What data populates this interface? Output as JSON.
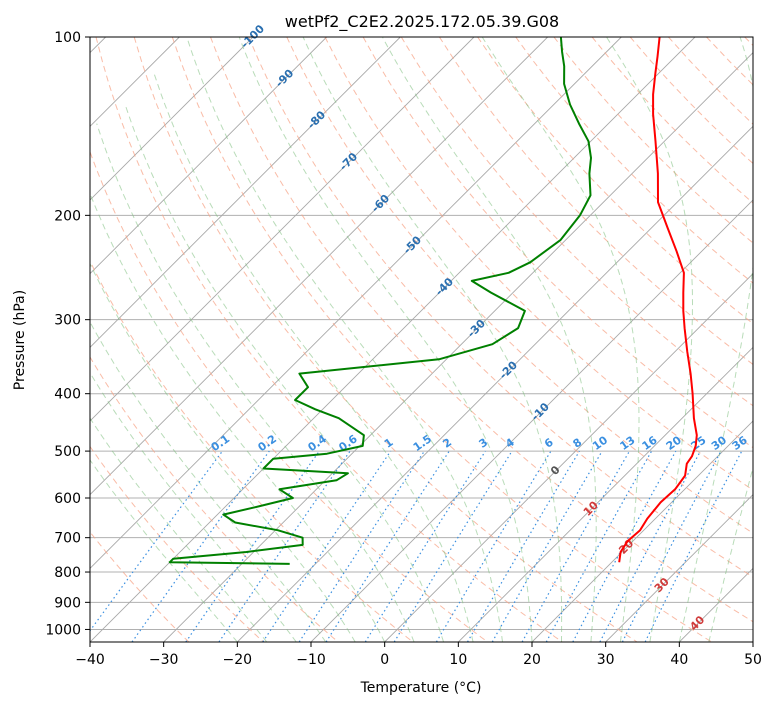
{
  "chart_data": {
    "type": "skewt",
    "title": "wetPf2_C2E2.2025.172.05.39.G08",
    "xlabel": "Temperature (°C)",
    "ylabel": "Pressure (hPa)",
    "xlim": [
      -40,
      50
    ],
    "ylim": [
      1050,
      100
    ],
    "x_ticks": [
      -40,
      -30,
      -20,
      -10,
      0,
      10,
      20,
      30,
      40,
      50
    ],
    "p_ticks": [
      100,
      200,
      300,
      400,
      500,
      600,
      700,
      800,
      900,
      1000
    ],
    "grid": true,
    "isotherm_labels": [
      -100,
      -90,
      -80,
      -70,
      -60,
      -50,
      -40,
      -30,
      -20,
      -10,
      0,
      10,
      20,
      30,
      40
    ],
    "mixing_ratio_labels": [
      "0.1",
      "0.2",
      "0.4",
      "0.6",
      "1",
      "1.5",
      "2",
      "3",
      "4",
      "6",
      "8",
      "10",
      "13",
      "16",
      "20",
      "25",
      "30",
      "36"
    ],
    "mixing_ratio_values": [
      0.1,
      0.2,
      0.4,
      0.6,
      1,
      1.5,
      2,
      3,
      4,
      6,
      8,
      10,
      13,
      16,
      20,
      25,
      30,
      36
    ],
    "series": [
      {
        "variable": "temperature",
        "color": "#ff0000",
        "points": [
          {
            "p": 770,
            "t": 21.0
          },
          {
            "p": 740,
            "t": 19.8
          },
          {
            "p": 710,
            "t": 19.3
          },
          {
            "p": 680,
            "t": 19.5
          },
          {
            "p": 650,
            "t": 18.9
          },
          {
            "p": 610,
            "t": 18.5
          },
          {
            "p": 580,
            "t": 18.7
          },
          {
            "p": 550,
            "t": 18.2
          },
          {
            "p": 525,
            "t": 16.8
          },
          {
            "p": 510,
            "t": 16.5
          },
          {
            "p": 490,
            "t": 15.6
          },
          {
            "p": 470,
            "t": 14.3
          },
          {
            "p": 440,
            "t": 11.6
          },
          {
            "p": 400,
            "t": 8.1
          },
          {
            "p": 370,
            "t": 5.1
          },
          {
            "p": 340,
            "t": 1.7
          },
          {
            "p": 310,
            "t": -1.9
          },
          {
            "p": 290,
            "t": -4.4
          },
          {
            "p": 270,
            "t": -6.9
          },
          {
            "p": 250,
            "t": -9.5
          },
          {
            "p": 230,
            "t": -13.4
          },
          {
            "p": 210,
            "t": -17.8
          },
          {
            "p": 190,
            "t": -22.6
          },
          {
            "p": 170,
            "t": -26.5
          },
          {
            "p": 150,
            "t": -31.2
          },
          {
            "p": 135,
            "t": -35.2
          },
          {
            "p": 125,
            "t": -37.9
          },
          {
            "p": 115,
            "t": -40.5
          },
          {
            "p": 108,
            "t": -42.4
          },
          {
            "p": 100,
            "t": -44.8
          }
        ]
      },
      {
        "variable": "dewpoint",
        "color": "#008000",
        "points": [
          {
            "p": 775,
            "t": -23.5
          },
          {
            "p": 770,
            "t": -40.0
          },
          {
            "p": 760,
            "t": -40.0
          },
          {
            "p": 740,
            "t": -31.0
          },
          {
            "p": 720,
            "t": -24.3
          },
          {
            "p": 700,
            "t": -25.3
          },
          {
            "p": 680,
            "t": -29.7
          },
          {
            "p": 660,
            "t": -36.5
          },
          {
            "p": 640,
            "t": -39.2
          },
          {
            "p": 620,
            "t": -35.5
          },
          {
            "p": 600,
            "t": -32.0
          },
          {
            "p": 580,
            "t": -35.0
          },
          {
            "p": 560,
            "t": -28.5
          },
          {
            "p": 545,
            "t": -27.9
          },
          {
            "p": 535,
            "t": -40.0
          },
          {
            "p": 515,
            "t": -40.0
          },
          {
            "p": 505,
            "t": -33.4
          },
          {
            "p": 490,
            "t": -29.6
          },
          {
            "p": 470,
            "t": -30.9
          },
          {
            "p": 440,
            "t": -36.6
          },
          {
            "p": 425,
            "t": -41.0
          },
          {
            "p": 410,
            "t": -45.0
          },
          {
            "p": 390,
            "t": -45.0
          },
          {
            "p": 370,
            "t": -48.0
          },
          {
            "p": 350,
            "t": -31.0
          },
          {
            "p": 330,
            "t": -25.8
          },
          {
            "p": 310,
            "t": -24.5
          },
          {
            "p": 290,
            "t": -25.9
          },
          {
            "p": 270,
            "t": -33.0
          },
          {
            "p": 258,
            "t": -37.2
          },
          {
            "p": 250,
            "t": -33.3
          },
          {
            "p": 240,
            "t": -31.8
          },
          {
            "p": 220,
            "t": -30.7
          },
          {
            "p": 200,
            "t": -31.4
          },
          {
            "p": 185,
            "t": -32.7
          },
          {
            "p": 170,
            "t": -35.8
          },
          {
            "p": 160,
            "t": -37.7
          },
          {
            "p": 150,
            "t": -40.3
          },
          {
            "p": 140,
            "t": -44.0
          },
          {
            "p": 130,
            "t": -47.8
          },
          {
            "p": 120,
            "t": -51.4
          },
          {
            "p": 112,
            "t": -53.8
          },
          {
            "p": 106,
            "t": -56.0
          },
          {
            "p": 100,
            "t": -58.2
          }
        ]
      }
    ]
  }
}
